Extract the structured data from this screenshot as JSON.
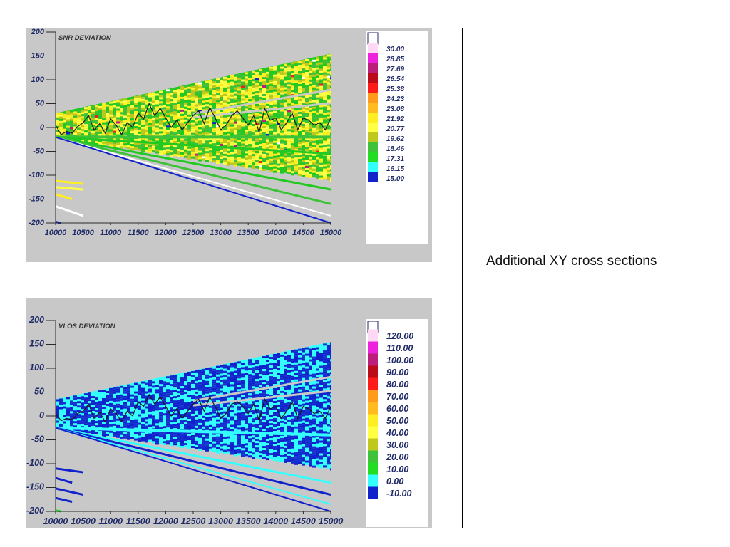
{
  "caption": "Additional XY cross sections",
  "colors": {
    "panel_bg": "#c8c8c8",
    "legend_bg": "#ffffff",
    "label_color": "#1f2a66",
    "trace_color": "#1a1a1a"
  },
  "chart_data": [
    {
      "type": "heatmap",
      "title": "SNR DEVIATION",
      "xlabel": "",
      "ylabel": "",
      "xlim": [
        10000,
        15000
      ],
      "ylim": [
        -200,
        200
      ],
      "x_ticks": [
        "10000",
        "10500",
        "11000",
        "11500",
        "12000",
        "12500",
        "13000",
        "13500",
        "14000",
        "14500",
        "15000"
      ],
      "y_ticks": [
        "200",
        "150",
        "100",
        "50",
        "0",
        "-50",
        "-100",
        "-150",
        "-200"
      ],
      "grid": false,
      "legend_position": "right",
      "colorbar": {
        "labels": [
          "30.00",
          "28.85",
          "27.69",
          "26.54",
          "25.38",
          "24.23",
          "23.08",
          "21.92",
          "20.77",
          "19.62",
          "18.46",
          "17.31",
          "16.15",
          "15.00"
        ],
        "colors": [
          "#ffd8f4",
          "#ee22dd",
          "#bb1f7a",
          "#bb0a18",
          "#ff1a1a",
          "#ff9a1a",
          "#ffbb20",
          "#ffee22",
          "#ffff44",
          "#c0c81e",
          "#3ec23a",
          "#22dd22",
          "#33ffff",
          "#1122cc"
        ]
      },
      "fan": {
        "apex_x": 10000,
        "apex_top": 30,
        "apex_bottom": -20,
        "end_top": 155,
        "end_bottom": -110,
        "base_colors": [
          "#22c922",
          "#ffee22",
          "#c0c81e",
          "#3ec23a",
          "#ffff44"
        ],
        "speck_colors": [
          "#1122cc",
          "#ff1a1a",
          "#ffffff",
          "#bb1f7a"
        ],
        "rays": [
          {
            "end_y": -20,
            "color": "#3ec23a",
            "width": 4
          },
          {
            "end_y": -55,
            "color": "#22c922",
            "width": 3
          },
          {
            "end_y": -130,
            "color": "#22c922",
            "width": 3
          },
          {
            "end_y": -160,
            "color": "#3ec23a",
            "width": 3
          },
          {
            "end_y": -185,
            "color": "#ffffff",
            "width": 2
          },
          {
            "end_y": -200,
            "color": "#1122cc",
            "width": 2
          }
        ],
        "isolated": [
          {
            "x0": 10000,
            "y0": -112,
            "x1": 10500,
            "y1": -118,
            "color": "#ffee22"
          },
          {
            "x0": 10000,
            "y0": -125,
            "x1": 10500,
            "y1": -130,
            "color": "#ffff44"
          },
          {
            "x0": 10000,
            "y0": -140,
            "x1": 10300,
            "y1": -150,
            "color": "#ffee22"
          },
          {
            "x0": 10000,
            "y0": -165,
            "x1": 10500,
            "y1": -185,
            "color": "#ffffff"
          },
          {
            "x0": 10000,
            "y0": -198,
            "x1": 10100,
            "y1": -200,
            "color": "#1122cc"
          }
        ]
      },
      "trace": {
        "x": [
          10000,
          10100,
          10200,
          10300,
          10400,
          10500,
          10600,
          10700,
          10800,
          10900,
          11000,
          11100,
          11200,
          11300,
          11400,
          11500,
          11600,
          11700,
          11800,
          11900,
          12000,
          12100,
          12200,
          12300,
          12400,
          12500,
          12600,
          12700,
          12800,
          12900,
          13000,
          13100,
          13200,
          13300,
          13400,
          13500,
          13600,
          13700,
          13800,
          13900,
          14000,
          14100,
          14200,
          14300,
          14400,
          14500,
          14600,
          14700,
          14800,
          14900,
          15000
        ],
        "y": [
          5,
          -15,
          -8,
          -12,
          2,
          10,
          25,
          -5,
          8,
          -12,
          18,
          5,
          -15,
          10,
          0,
          30,
          18,
          50,
          25,
          40,
          20,
          0,
          15,
          -5,
          10,
          25,
          35,
          8,
          42,
          20,
          -5,
          5,
          25,
          35,
          20,
          5,
          25,
          -10,
          40,
          15,
          20,
          -5,
          10,
          30,
          -5,
          20,
          15,
          5,
          10,
          -5,
          20
        ]
      }
    },
    {
      "type": "heatmap",
      "title": "VLOS DEVIATION",
      "xlabel": "",
      "ylabel": "",
      "xlim": [
        10000,
        15000
      ],
      "ylim": [
        -200,
        200
      ],
      "x_ticks": [
        "10000",
        "10500",
        "11000",
        "11500",
        "12000",
        "12500",
        "13000",
        "13500",
        "14000",
        "14500",
        "15000"
      ],
      "y_ticks": [
        "200",
        "150",
        "100",
        "50",
        "0",
        "-50",
        "-100",
        "-150",
        "-200"
      ],
      "grid": false,
      "legend_position": "right",
      "colorbar": {
        "labels": [
          "120.00",
          "110.00",
          "100.00",
          "90.00",
          "80.00",
          "70.00",
          "60.00",
          "50.00",
          "40.00",
          "30.00",
          "20.00",
          "10.00",
          "0.00",
          "-10.00"
        ],
        "colors": [
          "#ffd8f4",
          "#ee22dd",
          "#bb1f7a",
          "#bb0a18",
          "#ff1a1a",
          "#ff9a1a",
          "#ffbb20",
          "#ffee22",
          "#ffff44",
          "#c0c81e",
          "#3ec23a",
          "#22dd22",
          "#33ffff",
          "#1122cc"
        ]
      },
      "fan": {
        "apex_x": 10000,
        "apex_top": 35,
        "apex_bottom": -25,
        "end_top": 155,
        "end_bottom": -110,
        "base_colors": [
          "#33ffff",
          "#1122cc",
          "#33ffff",
          "#1122cc",
          "#1a2fd0"
        ],
        "speck_colors": [
          "#33ffff",
          "#1122cc"
        ],
        "rays": [
          {
            "end_y": -40,
            "color": "#33ffff",
            "width": 4
          },
          {
            "end_y": -140,
            "color": "#33ffff",
            "width": 3
          },
          {
            "end_y": -165,
            "color": "#1122cc",
            "width": 3
          },
          {
            "end_y": -185,
            "color": "#33ffff",
            "width": 2
          },
          {
            "end_y": -200,
            "color": "#1122cc",
            "width": 2
          }
        ],
        "isolated": [
          {
            "x0": 10000,
            "y0": -110,
            "x1": 10500,
            "y1": -118,
            "color": "#1122cc"
          },
          {
            "x0": 10000,
            "y0": -130,
            "x1": 10300,
            "y1": -140,
            "color": "#1122cc"
          },
          {
            "x0": 10000,
            "y0": -152,
            "x1": 10500,
            "y1": -165,
            "color": "#1122cc"
          },
          {
            "x0": 10000,
            "y0": -172,
            "x1": 10300,
            "y1": -180,
            "color": "#1122cc"
          },
          {
            "x0": 10000,
            "y0": -198,
            "x1": 10100,
            "y1": -200,
            "color": "#22dd22"
          }
        ]
      },
      "trace": {
        "x": [
          10000,
          10100,
          10200,
          10300,
          10400,
          10500,
          10600,
          10700,
          10800,
          10900,
          11000,
          11100,
          11200,
          11300,
          11400,
          11500,
          11600,
          11700,
          11800,
          11900,
          12000,
          12100,
          12200,
          12300,
          12400,
          12500,
          12600,
          12700,
          12800,
          12900,
          13000,
          13100,
          13200,
          13300,
          13400,
          13500,
          13600,
          13700,
          13800,
          13900,
          14000,
          14100,
          14200,
          14300,
          14400,
          14500,
          14600,
          14700,
          14800,
          14900,
          15000
        ],
        "y": [
          5,
          -10,
          -5,
          -8,
          5,
          10,
          25,
          -5,
          8,
          -12,
          15,
          5,
          -12,
          10,
          0,
          30,
          20,
          45,
          25,
          40,
          20,
          0,
          15,
          -5,
          10,
          25,
          35,
          10,
          40,
          20,
          -5,
          5,
          25,
          30,
          20,
          5,
          25,
          -10,
          35,
          15,
          20,
          -5,
          10,
          30,
          -5,
          20,
          15,
          5,
          10,
          -5,
          20
        ]
      }
    }
  ]
}
